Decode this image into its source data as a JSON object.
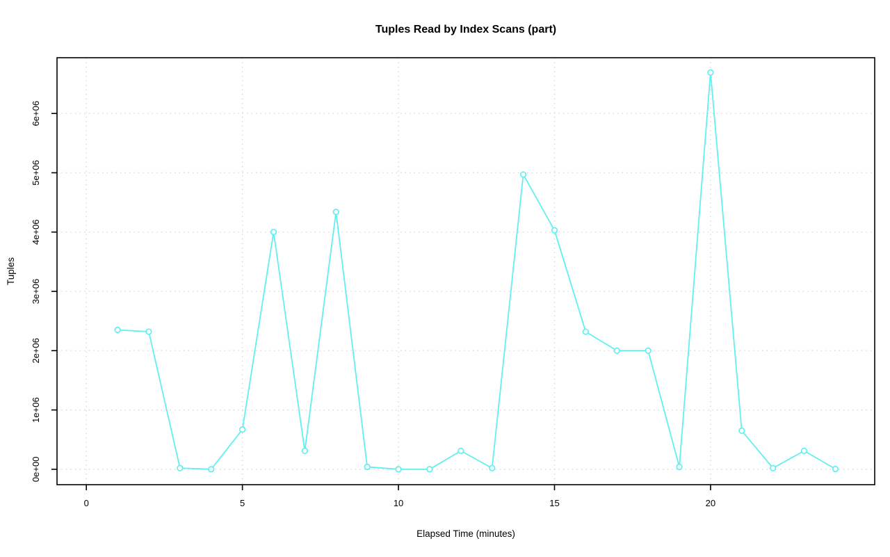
{
  "chart_data": {
    "type": "line",
    "title": "Tuples Read by Index Scans (part)",
    "xlabel": "Elapsed Time (minutes)",
    "ylabel": "Tuples",
    "series": [
      {
        "name": "part",
        "x": [
          1,
          2,
          3,
          4,
          5,
          6,
          7,
          8,
          9,
          10,
          11,
          12,
          13,
          14,
          15,
          16,
          17,
          18,
          19,
          20,
          21,
          22,
          23,
          24
        ],
        "values": [
          2350000,
          2320000,
          20000,
          0,
          670000,
          4000000,
          310000,
          4340000,
          40000,
          0,
          0,
          310000,
          20000,
          4970000,
          4030000,
          2320000,
          2000000,
          2000000,
          40000,
          6690000,
          650000,
          20000,
          310000,
          5000
        ]
      }
    ],
    "xticks": {
      "values": [
        0,
        5,
        10,
        15,
        20
      ],
      "labels": [
        "0",
        "5",
        "10",
        "15",
        "20"
      ]
    },
    "yticks": {
      "values": [
        0,
        1000000,
        2000000,
        3000000,
        4000000,
        5000000,
        6000000
      ],
      "labels": [
        "0e+00",
        "1e+06",
        "2e+06",
        "3e+06",
        "4e+06",
        "5e+06",
        "6e+06"
      ]
    },
    "xlim": [
      -0.94,
      25.26
    ],
    "ylim": [
      -260000,
      6940000
    ],
    "grid": "dotted",
    "legend_position": "none",
    "marker": "open-circle",
    "colors": {
      "line": "#62EFEF",
      "grid": "#D6D6D6",
      "axis": "#000000",
      "background": "#FFFFFF"
    }
  }
}
